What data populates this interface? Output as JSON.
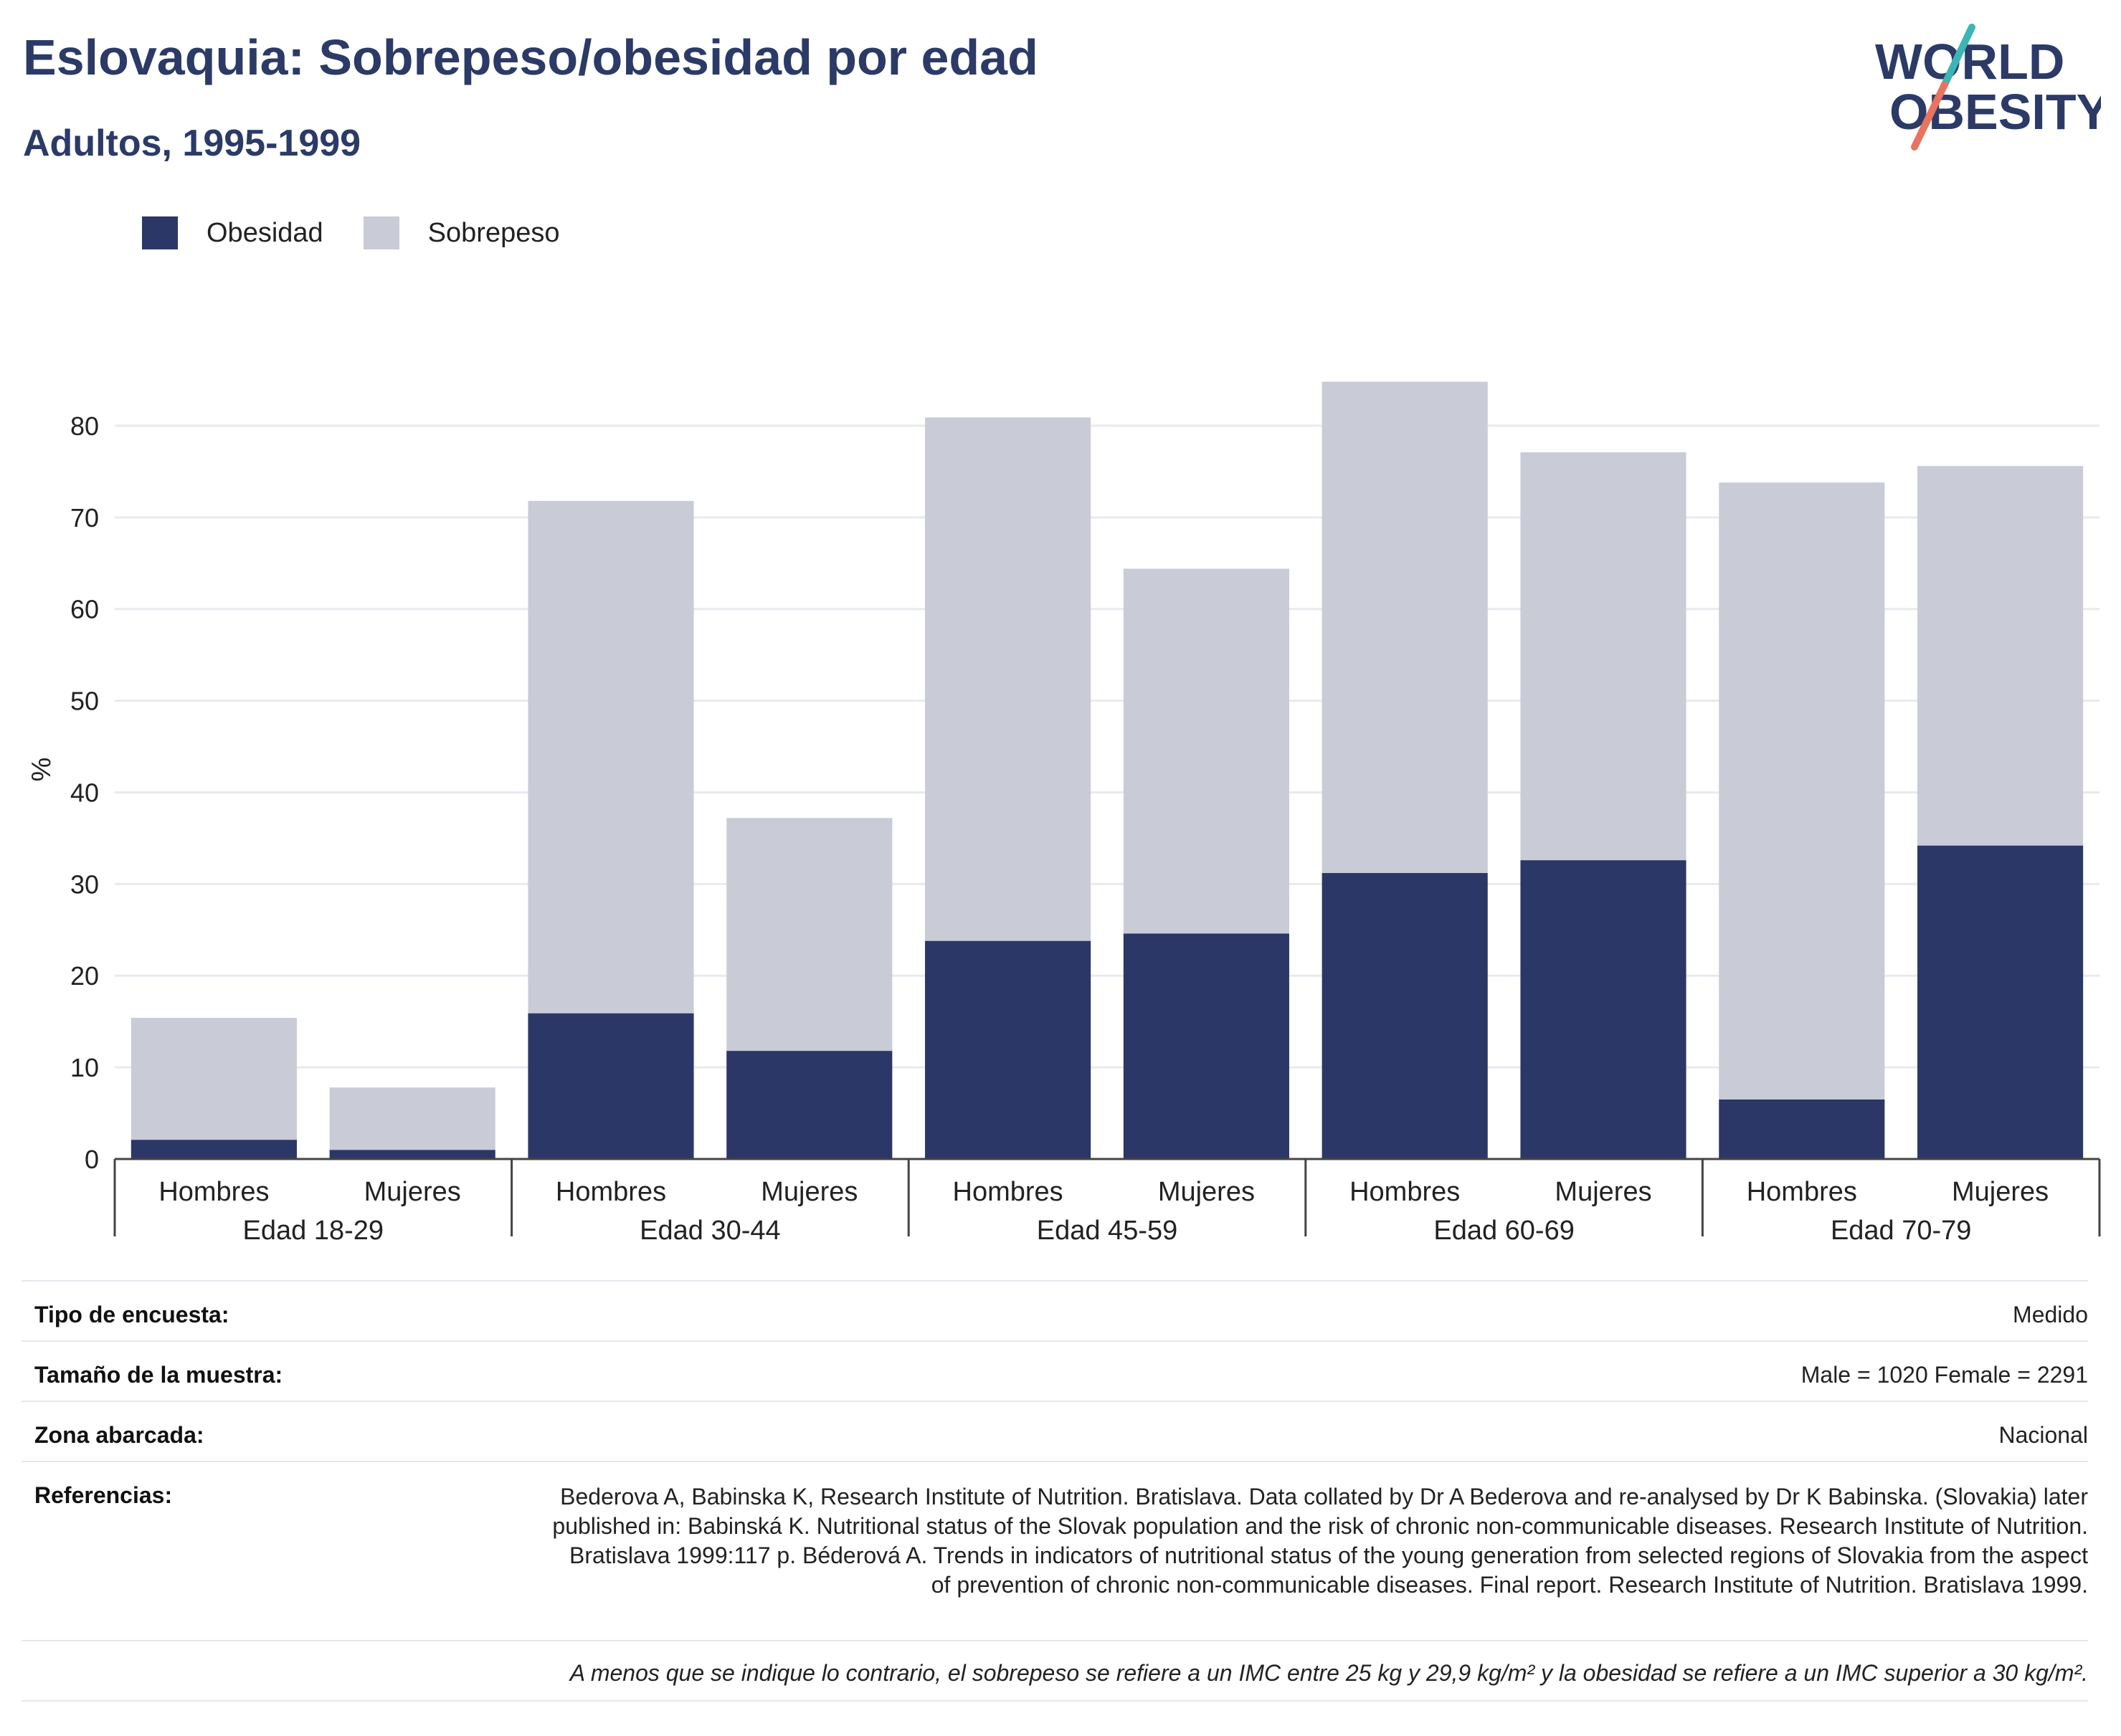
{
  "header": {
    "title": "Eslovaquia: Sobrepeso/obesidad por edad",
    "subtitle": "Adultos, 1995-1999",
    "logo_line1": "WORLD",
    "logo_line2": "OBESITY"
  },
  "colors": {
    "obesity": "#2b3766",
    "overweight": "#c9cbd7",
    "title": "#2b3a67",
    "logo_teal": "#3bb5b5",
    "logo_coral": "#e8735f"
  },
  "chart_data": {
    "type": "bar",
    "stacked": true,
    "ylabel": "%",
    "ylim": [
      0,
      85
    ],
    "yticks": [
      0,
      10,
      20,
      30,
      40,
      50,
      60,
      70,
      80
    ],
    "grid": true,
    "legend_position": "top-left",
    "groups": [
      "Edad 18-29",
      "Edad 30-44",
      "Edad 45-59",
      "Edad 60-69",
      "Edad 70-79"
    ],
    "categories": [
      "Hombres",
      "Mujeres",
      "Hombres",
      "Mujeres",
      "Hombres",
      "Mujeres",
      "Hombres",
      "Mujeres",
      "Hombres",
      "Mujeres"
    ],
    "series": [
      {
        "name": "Obesidad",
        "values": [
          2.1,
          1.0,
          15.9,
          11.8,
          23.8,
          24.6,
          31.2,
          32.6,
          6.5,
          34.2
        ]
      },
      {
        "name": "Sobrepeso",
        "values": [
          13.3,
          6.8,
          55.9,
          25.4,
          57.1,
          39.8,
          53.6,
          44.5,
          67.3,
          41.4
        ]
      }
    ]
  },
  "info": {
    "survey_label": "Tipo de encuesta:",
    "survey_value": "Medido",
    "sample_label": "Tamaño de la muestra:",
    "sample_value": "Male = 1020 Female = 2291",
    "area_label": "Zona abarcada:",
    "area_value": "Nacional",
    "refs_label": "Referencias:",
    "refs_value": "Bederova A, Babinska K, Research Institute of Nutrition. Bratislava. Data collated by Dr A Bederova and re-analysed by Dr K Babinska. (Slovakia) later published in: Babinská K. Nutritional status of the Slovak population and the risk of chronic non-communicable diseases. Research Institute of Nutrition. Bratislava 1999:117 p. Béderová A. Trends in indicators of nutritional status of the young generation from selected regions of Slovakia from the aspect of prevention of chronic non-communicable diseases. Final report. Research Institute of Nutrition. Bratislava 1999.",
    "footnote": "A menos que se indique lo contrario, el sobrepeso se refiere a un IMC entre 25 kg y 29,9 kg/m² y la obesidad se refiere a un IMC superior a 30 kg/m²."
  }
}
